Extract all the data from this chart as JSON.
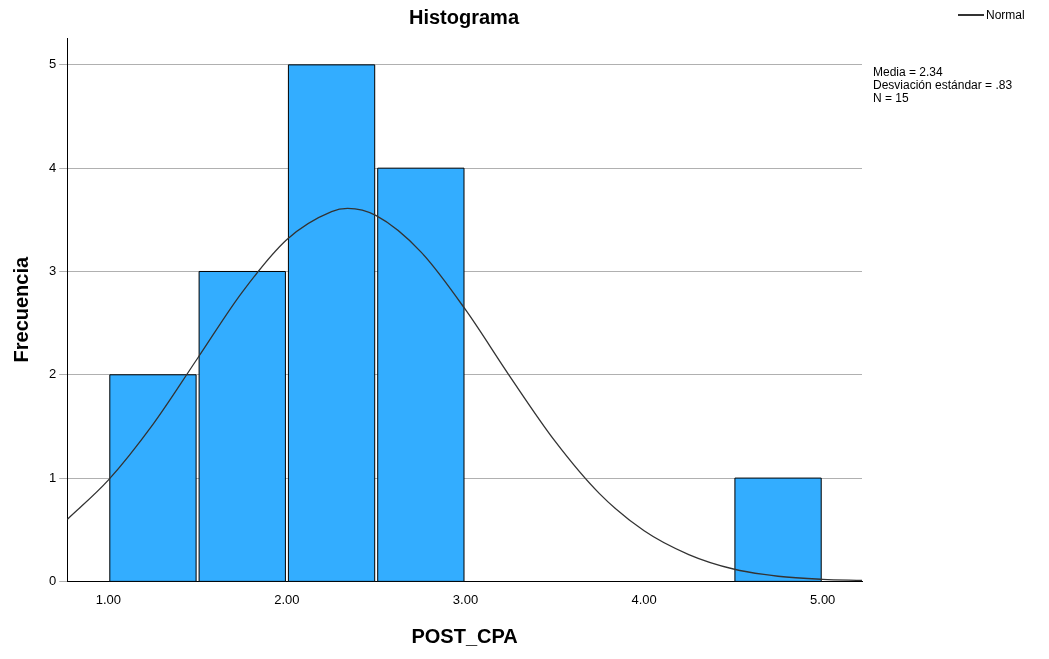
{
  "chart_data": {
    "type": "histogram",
    "title": "Histograma",
    "xlabel": "POST_CPA",
    "ylabel": "Frecuencia",
    "bins": [
      1.0,
      1.5,
      2.0,
      2.5,
      3.0,
      3.5,
      4.0,
      4.5,
      5.0
    ],
    "values": [
      2,
      3,
      5,
      4,
      0,
      0,
      0,
      1
    ],
    "color": "#33adff",
    "series": [
      {
        "name": "Normal",
        "type": "line",
        "color": "#333333",
        "x": [
          0.77,
          1.0,
          1.25,
          1.5,
          1.75,
          2.0,
          2.25,
          2.34,
          2.5,
          2.75,
          3.0,
          3.25,
          3.5,
          3.75,
          4.0,
          4.25,
          4.5,
          4.75,
          5.0,
          5.22
        ],
        "values": [
          0.6,
          0.98,
          1.52,
          2.16,
          2.8,
          3.31,
          3.58,
          3.61,
          3.54,
          3.19,
          2.63,
          1.98,
          1.36,
          0.85,
          0.49,
          0.26,
          0.12,
          0.05,
          0.02,
          0.01
        ]
      }
    ],
    "xlim": [
      0.77,
      5.22
    ],
    "xticks": [
      {
        "value": 1,
        "label": "1.00"
      },
      {
        "value": 2,
        "label": "2.00"
      },
      {
        "value": 3,
        "label": "3.00"
      },
      {
        "value": 4,
        "label": "4.00"
      },
      {
        "value": 5,
        "label": "5.00"
      }
    ],
    "ylim": [
      0,
      5.26
    ],
    "yticks": [
      0,
      1,
      2,
      3,
      4,
      5
    ],
    "grid": "y",
    "legend": "top right",
    "annotations": [
      "Media = 2.34",
      "Desviación estándar = .83",
      "N = 15"
    ]
  }
}
